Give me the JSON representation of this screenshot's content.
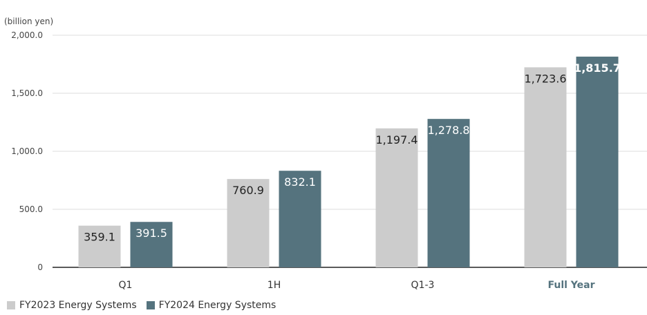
{
  "chart_data": {
    "type": "bar",
    "unit_label": "(billion yen)",
    "categories": [
      "Q1",
      "1H",
      "Q1-3",
      "Full Year"
    ],
    "highlight_category": "Full Year",
    "ylim": [
      0,
      2000
    ],
    "yticks": [
      0,
      500,
      1000,
      1500,
      2000
    ],
    "ytick_labels": [
      "0",
      "500.0",
      "1,000.0",
      "1,500.0",
      "2,000.0"
    ],
    "grid": true,
    "legend_position": "bottom-left",
    "series": [
      {
        "name": "FY2023 Energy Systems",
        "color": "#cccccc",
        "label_color": "#222222",
        "values": [
          359.1,
          760.9,
          1197.4,
          1723.6
        ],
        "labels": [
          "359.1",
          "760.9",
          "1,197.4",
          "1,723.6"
        ]
      },
      {
        "name": "FY2024 Energy Systems",
        "color": "#55737e",
        "label_color": "#ffffff",
        "values": [
          391.5,
          832.1,
          1278.8,
          1815.7
        ],
        "labels": [
          "391.5",
          "832.1",
          "1,278.8",
          "1,815.7"
        ]
      }
    ]
  }
}
